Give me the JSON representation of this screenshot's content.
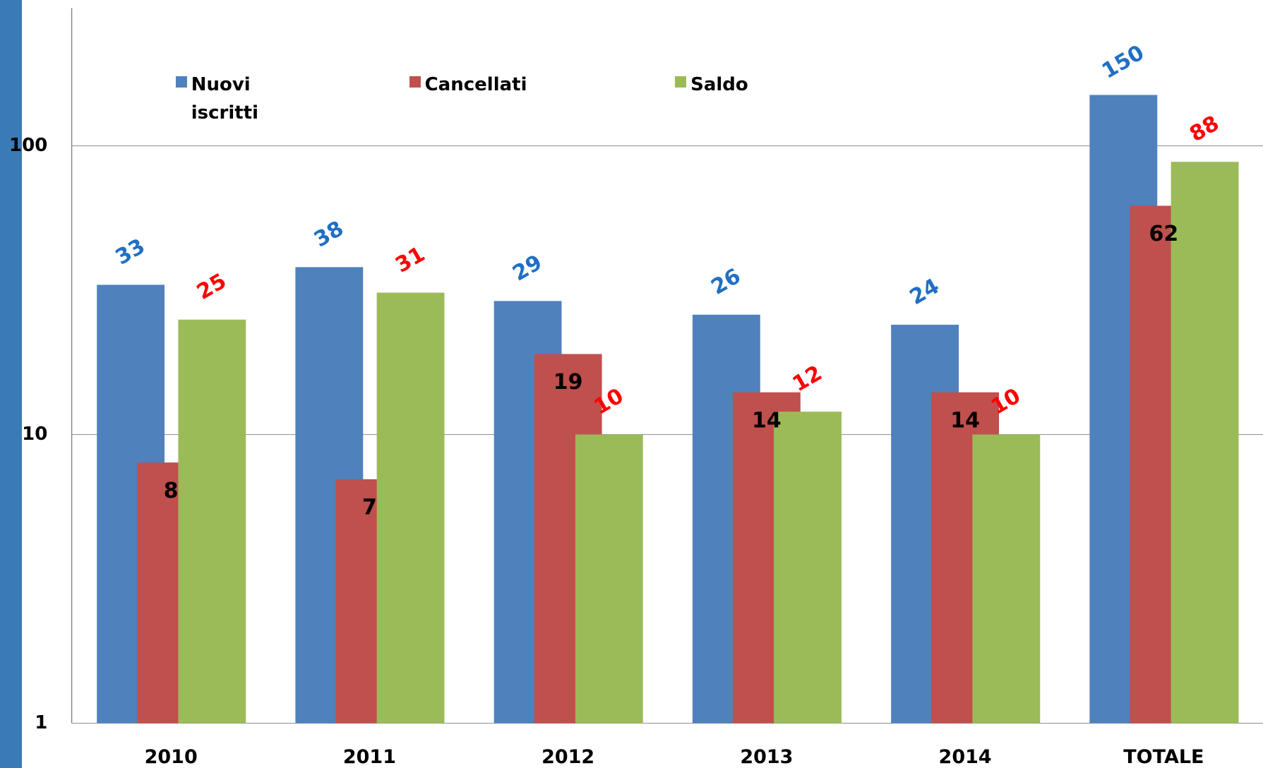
{
  "chart_data": {
    "type": "bar",
    "log_scale": true,
    "grid": true,
    "categories": [
      "2010",
      "2011",
      "2012",
      "2013",
      "2014",
      "TOTALE"
    ],
    "series": [
      {
        "name": "Nuovi iscritti",
        "color": "#4f81bd",
        "label_color": "#1f6fc5",
        "values": [
          33,
          38,
          29,
          26,
          24,
          150
        ]
      },
      {
        "name": "Cancellati",
        "color": "#c0504d",
        "label_color": "#000000",
        "values": [
          8,
          7,
          19,
          14,
          14,
          62
        ]
      },
      {
        "name": "Saldo",
        "color": "#9bbb59",
        "label_color": "#ff0000",
        "values": [
          25,
          31,
          10,
          12,
          10,
          88
        ]
      }
    ],
    "ylim": [
      1,
      300
    ],
    "yticks": [
      1,
      10,
      100
    ],
    "legend": "top-left"
  }
}
